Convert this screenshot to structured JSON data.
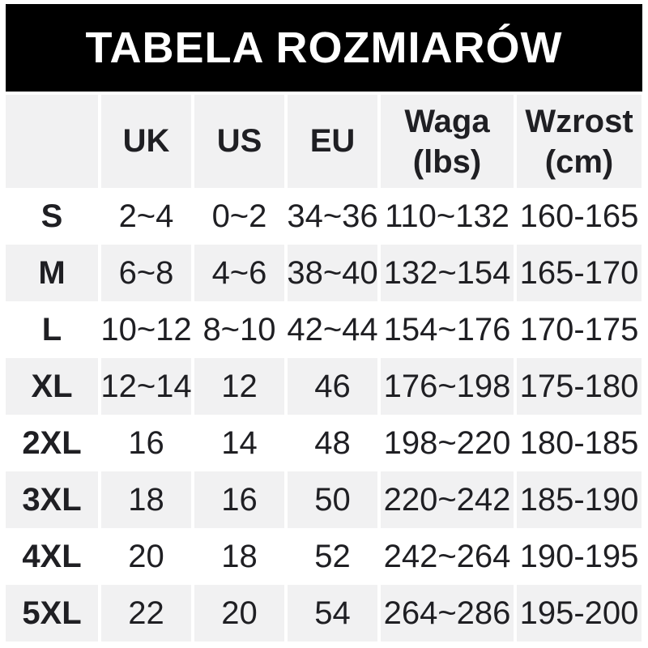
{
  "chart_data": {
    "type": "table",
    "title": "TABELA ROZMIARÓW",
    "columns": [
      {
        "label": "",
        "sub": ""
      },
      {
        "label": "UK",
        "sub": ""
      },
      {
        "label": "US",
        "sub": ""
      },
      {
        "label": "EU",
        "sub": ""
      },
      {
        "label": "Waga",
        "sub": "(lbs)"
      },
      {
        "label": "Wzrost",
        "sub": "(cm)"
      }
    ],
    "rows": [
      {
        "size": "S",
        "uk": "2~4",
        "us": "0~2",
        "eu": "34~36",
        "waga_lbs": "110~132",
        "wzrost_cm": "160-165"
      },
      {
        "size": "M",
        "uk": "6~8",
        "us": "4~6",
        "eu": "38~40",
        "waga_lbs": "132~154",
        "wzrost_cm": "165-170"
      },
      {
        "size": "L",
        "uk": "10~12",
        "us": "8~10",
        "eu": "42~44",
        "waga_lbs": "154~176",
        "wzrost_cm": "170-175"
      },
      {
        "size": "XL",
        "uk": "12~14",
        "us": "12",
        "eu": "46",
        "waga_lbs": "176~198",
        "wzrost_cm": "175-180"
      },
      {
        "size": "2XL",
        "uk": "16",
        "us": "14",
        "eu": "48",
        "waga_lbs": "198~220",
        "wzrost_cm": "180-185"
      },
      {
        "size": "3XL",
        "uk": "18",
        "us": "16",
        "eu": "50",
        "waga_lbs": "220~242",
        "wzrost_cm": "185-190"
      },
      {
        "size": "4XL",
        "uk": "20",
        "us": "18",
        "eu": "52",
        "waga_lbs": "242~264",
        "wzrost_cm": "190-195"
      },
      {
        "size": "5XL",
        "uk": "22",
        "us": "20",
        "eu": "54",
        "waga_lbs": "264~286",
        "wzrost_cm": "195-200"
      }
    ],
    "layout": {
      "shaded_rows": "header, M, XL, 3XL, 5XL",
      "grid": "white column gaps, no printed borders"
    }
  },
  "colors": {
    "title_bg": "#000000",
    "title_text": "#ffffff",
    "shaded_row_bg": "#f1f1f2",
    "plain_row_bg": "#ffffff",
    "text": "#1f1f23"
  }
}
